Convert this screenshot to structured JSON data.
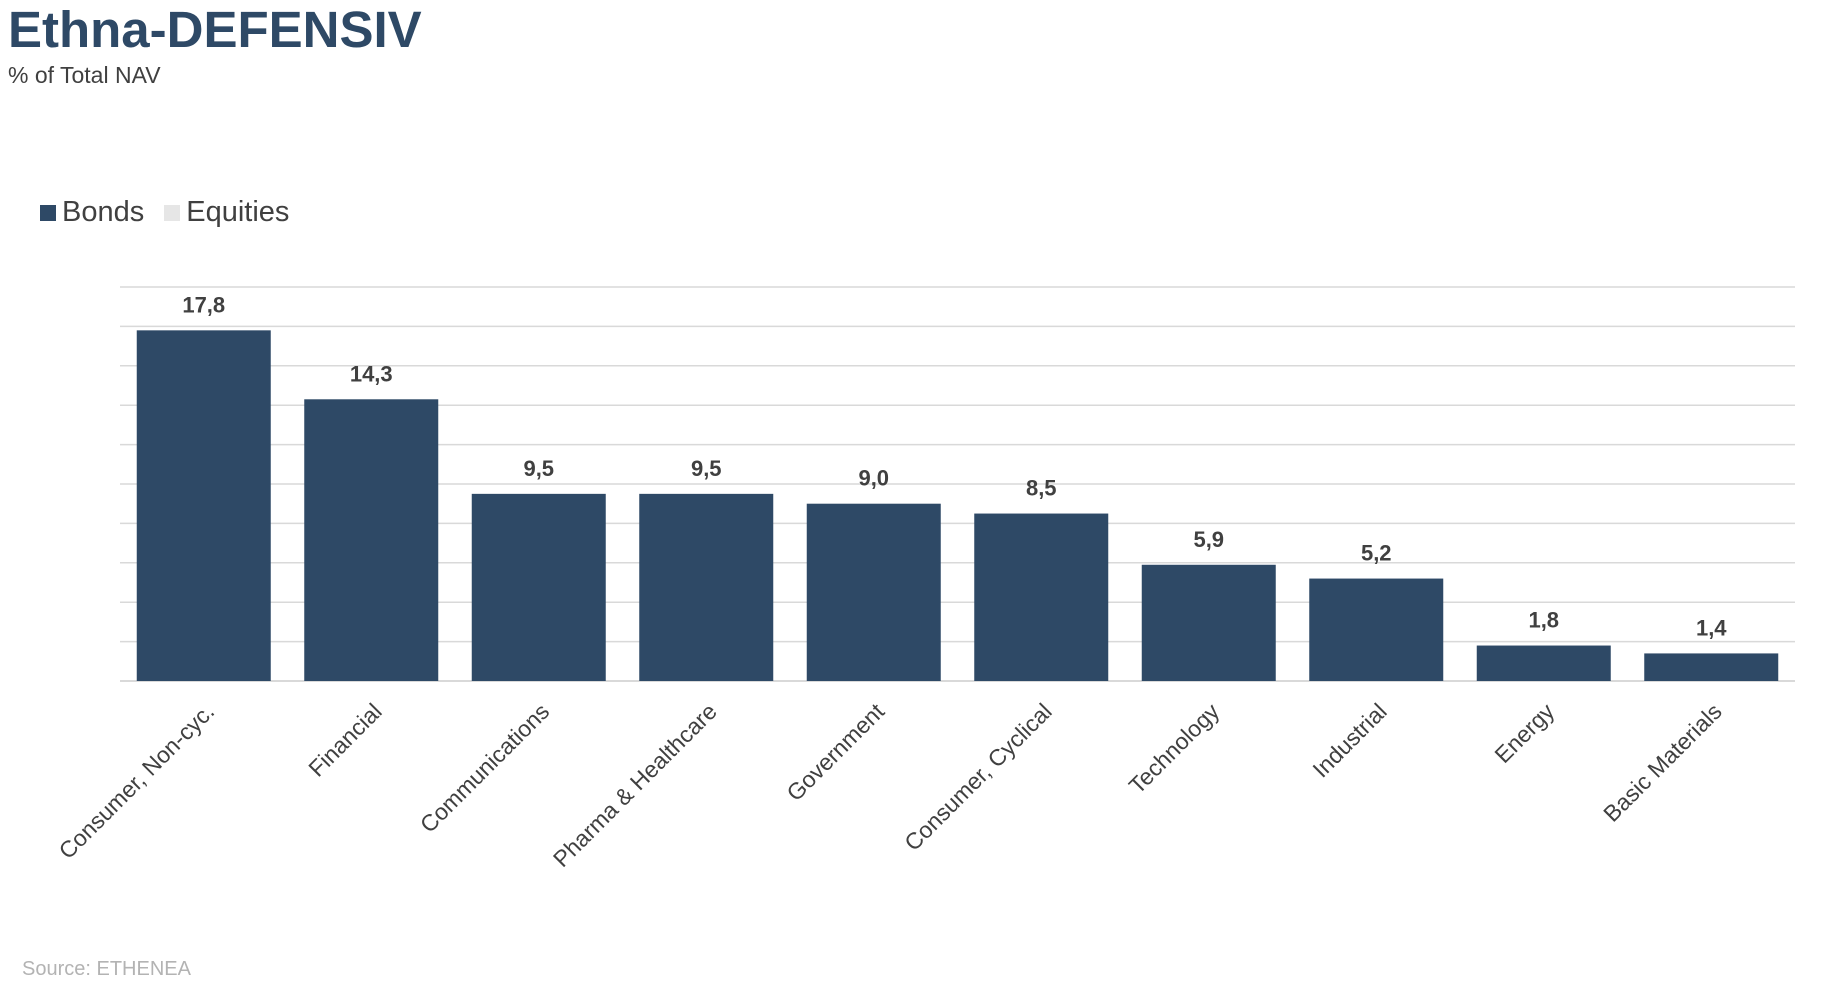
{
  "title": "Ethna-DEFENSIV",
  "subtitle": "% of Total NAV",
  "source": "Source: ETHENEA",
  "colors": {
    "bonds": "#2e4966",
    "equities": "#e6e6e6",
    "title": "#2e4966",
    "grid": "#d9d9d9"
  },
  "legend": {
    "placement": "top-left",
    "items": [
      {
        "label": "Bonds",
        "color": "#2e4966"
      },
      {
        "label": "Equities",
        "color": "#e6e6e6"
      }
    ]
  },
  "chart_data": {
    "type": "bar",
    "title": "Ethna-DEFENSIV",
    "subtitle": "% of Total NAV",
    "categories": [
      "Consumer, Non-cyc.",
      "Financial",
      "Communications",
      "Pharma & Healthcare",
      "Government",
      "Consumer, Cyclical",
      "Technology",
      "Industrial",
      "Energy",
      "Basic Materials"
    ],
    "series": [
      {
        "name": "Bonds",
        "values": [
          17.8,
          14.3,
          9.5,
          9.5,
          9.0,
          8.5,
          5.9,
          5.2,
          1.8,
          1.4
        ],
        "value_labels": [
          "17,8",
          "14,3",
          "9,5",
          "9,5",
          "9,0",
          "8,5",
          "5,9",
          "5,2",
          "1,8",
          "1,4"
        ]
      },
      {
        "name": "Equities",
        "values": [
          0,
          0,
          0,
          0,
          0,
          0,
          0,
          0,
          0,
          0
        ]
      }
    ],
    "ylim": [
      0,
      20
    ],
    "y_grid_step": 2,
    "grid": true,
    "y_axis_labels_shown": false,
    "xlabel": "",
    "ylabel": ""
  }
}
